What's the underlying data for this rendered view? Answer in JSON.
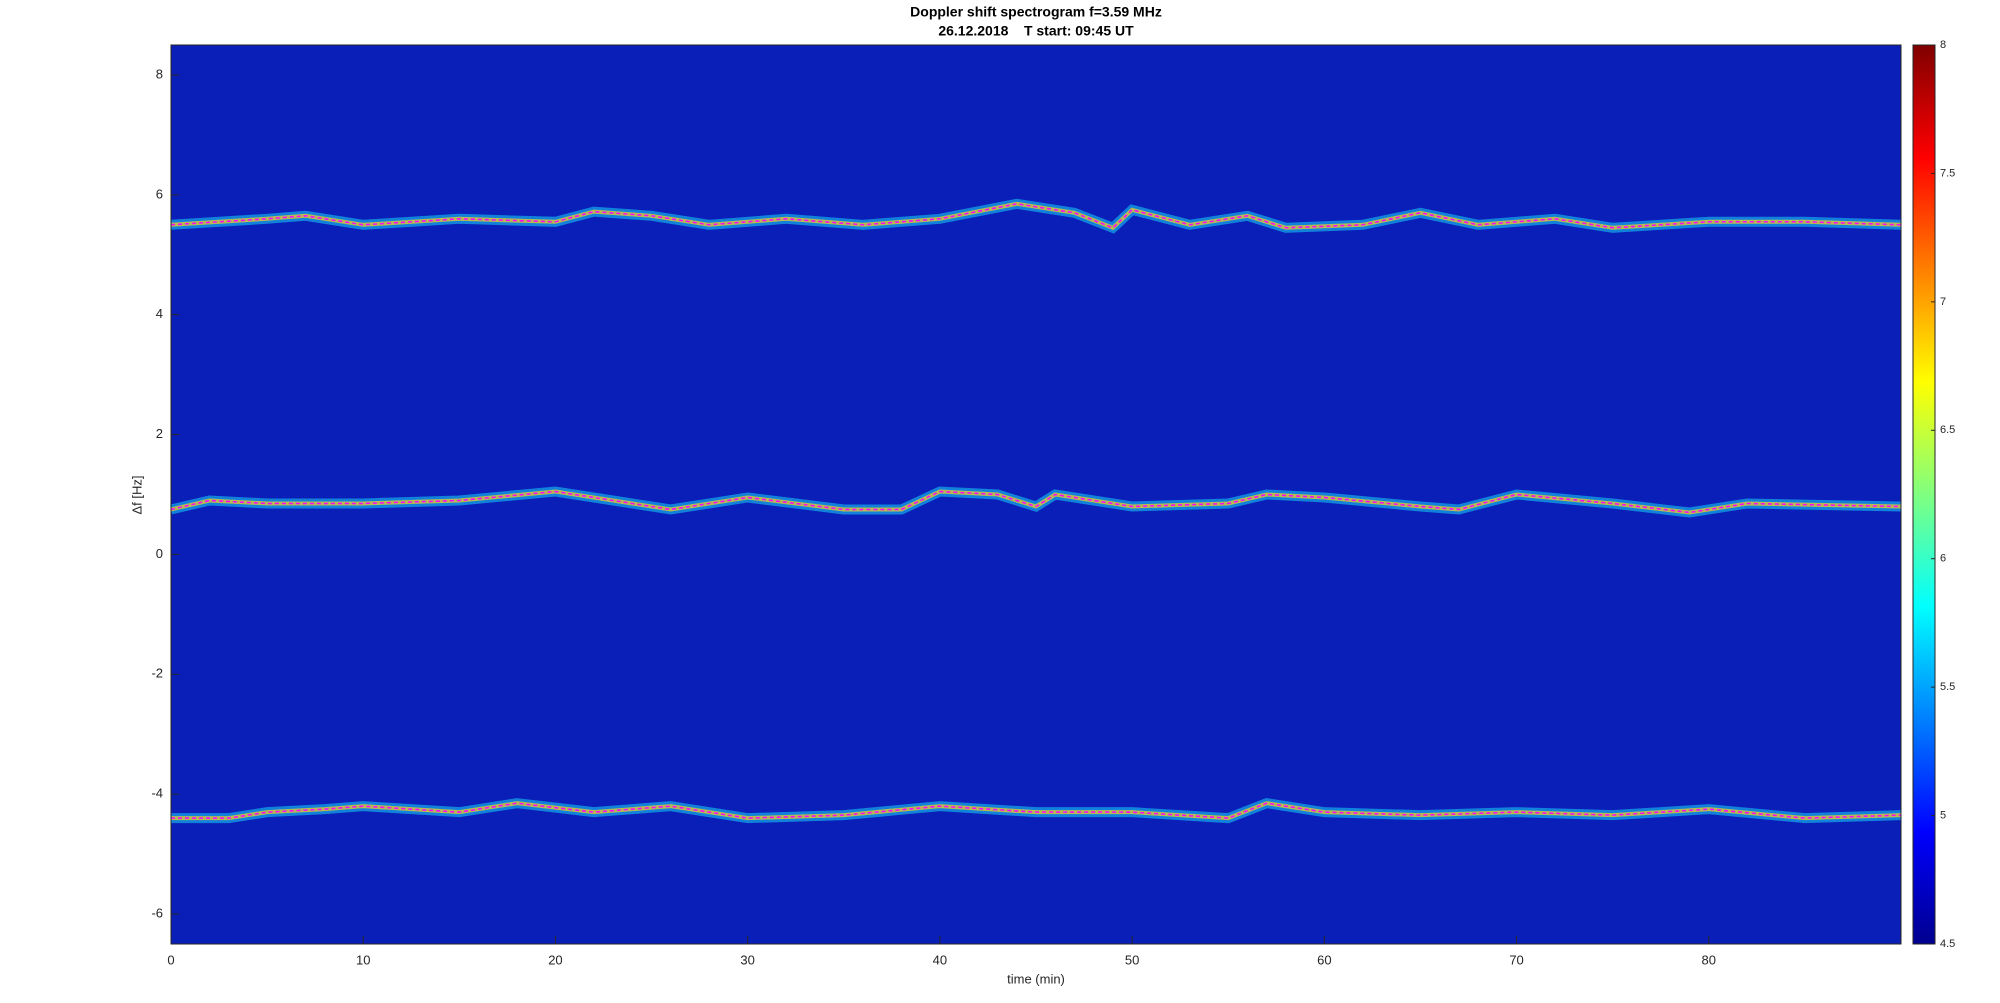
{
  "chart_data": {
    "type": "line",
    "title": "Doppler shift spectrogram f=3.59 MHz",
    "subtitle": "26.12.2018    T start: 09:45 UT",
    "x_label": "time (min)",
    "y_label": "Δf [Hz]",
    "xlim": [
      0,
      90
    ],
    "xticks": [
      0,
      10,
      20,
      30,
      40,
      50,
      60,
      70,
      80
    ],
    "ylim": [
      -6.5,
      8.5
    ],
    "yticks": [
      -6,
      -4,
      -2,
      0,
      2,
      4,
      6,
      8
    ],
    "background": "#0a1fb8",
    "colorbar": {
      "colormap": "jet",
      "clim": [
        4.5,
        8
      ],
      "ticks": [
        4.5,
        5,
        5.5,
        6,
        6.5,
        7,
        7.5,
        8
      ]
    },
    "series": [
      {
        "color": "#ff00ff",
        "x": [
          0,
          5,
          7,
          10,
          15,
          20,
          22,
          25,
          28,
          32,
          36,
          40,
          44,
          47,
          49,
          50,
          53,
          56,
          58,
          62,
          65,
          68,
          72,
          75,
          80,
          85,
          90
        ],
        "values": [
          5.5,
          5.6,
          5.65,
          5.5,
          5.6,
          5.55,
          5.72,
          5.65,
          5.5,
          5.6,
          5.5,
          5.6,
          5.85,
          5.7,
          5.45,
          5.75,
          5.5,
          5.65,
          5.45,
          5.5,
          5.7,
          5.5,
          5.6,
          5.45,
          5.55,
          5.55,
          5.5
        ]
      },
      {
        "color": "#ff00ff",
        "x": [
          0,
          2,
          5,
          10,
          15,
          20,
          26,
          30,
          35,
          38,
          40,
          43,
          45,
          46,
          50,
          55,
          57,
          60,
          65,
          67,
          70,
          75,
          79,
          82,
          90
        ],
        "values": [
          0.75,
          0.9,
          0.85,
          0.85,
          0.9,
          1.05,
          0.75,
          0.95,
          0.75,
          0.75,
          1.05,
          1.0,
          0.8,
          1.0,
          0.8,
          0.85,
          1.0,
          0.95,
          0.8,
          0.75,
          1.0,
          0.85,
          0.7,
          0.85,
          0.8
        ]
      },
      {
        "color": "#ff00ff",
        "x": [
          0,
          3,
          5,
          8,
          10,
          15,
          18,
          22,
          26,
          30,
          35,
          40,
          45,
          50,
          55,
          57,
          60,
          65,
          70,
          75,
          80,
          85,
          90
        ],
        "values": [
          -4.4,
          -4.4,
          -4.3,
          -4.25,
          -4.2,
          -4.3,
          -4.15,
          -4.3,
          -4.2,
          -4.4,
          -4.35,
          -4.2,
          -4.3,
          -4.3,
          -4.4,
          -4.15,
          -4.3,
          -4.35,
          -4.3,
          -4.35,
          -4.25,
          -4.4,
          -4.35
        ]
      }
    ]
  }
}
